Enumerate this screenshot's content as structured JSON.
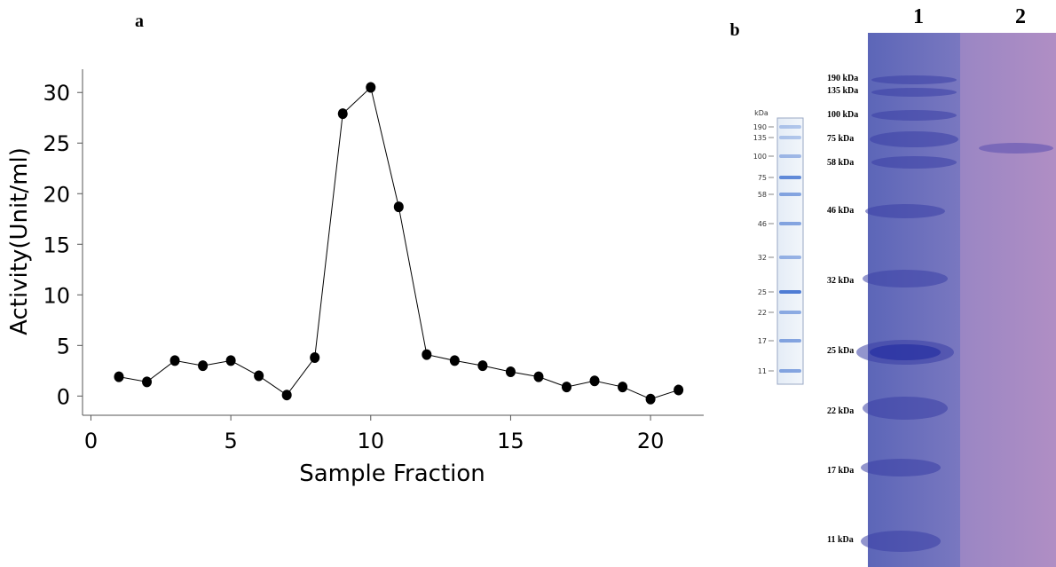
{
  "chart_data": {
    "type": "line",
    "x_label": "Sample Fraction",
    "y_label": "Activity(Unit/ml)",
    "x": [
      1,
      2,
      3,
      4,
      5,
      6,
      7,
      8,
      9,
      10,
      11,
      12,
      13,
      14,
      15,
      16,
      17,
      18,
      19,
      20,
      21
    ],
    "values": [
      1.9,
      1.4,
      3.5,
      3.0,
      3.5,
      2.0,
      0.1,
      3.8,
      27.9,
      30.5,
      18.7,
      4.1,
      3.5,
      3.0,
      2.4,
      1.9,
      0.9,
      1.5,
      0.9,
      -0.3,
      0.6
    ],
    "color": "#000000",
    "xlim": [
      -0.3,
      21.9
    ],
    "xticks": [
      0,
      5,
      10,
      15,
      20
    ],
    "ylim": [
      -1.9,
      32.3
    ],
    "yticks": [
      0,
      5,
      10,
      15,
      20,
      25,
      30
    ]
  },
  "panel_labels": {
    "a": "a",
    "b": "b"
  },
  "gel": {
    "lanes": [
      "1",
      "2"
    ],
    "ladder_unit": "kDa",
    "ladder_labels": [
      "190",
      "135",
      "100",
      "75",
      "58",
      "46",
      "32",
      "25",
      "22",
      "17",
      "11"
    ],
    "marker_labels": [
      "190 kDa",
      "135 kDa",
      "100 kDa",
      "75 kDa",
      "58 kDa",
      "46 kDa",
      "32 kDa",
      "25 kDa",
      "22 kDa",
      "17 kDa",
      "11 kDa"
    ]
  }
}
